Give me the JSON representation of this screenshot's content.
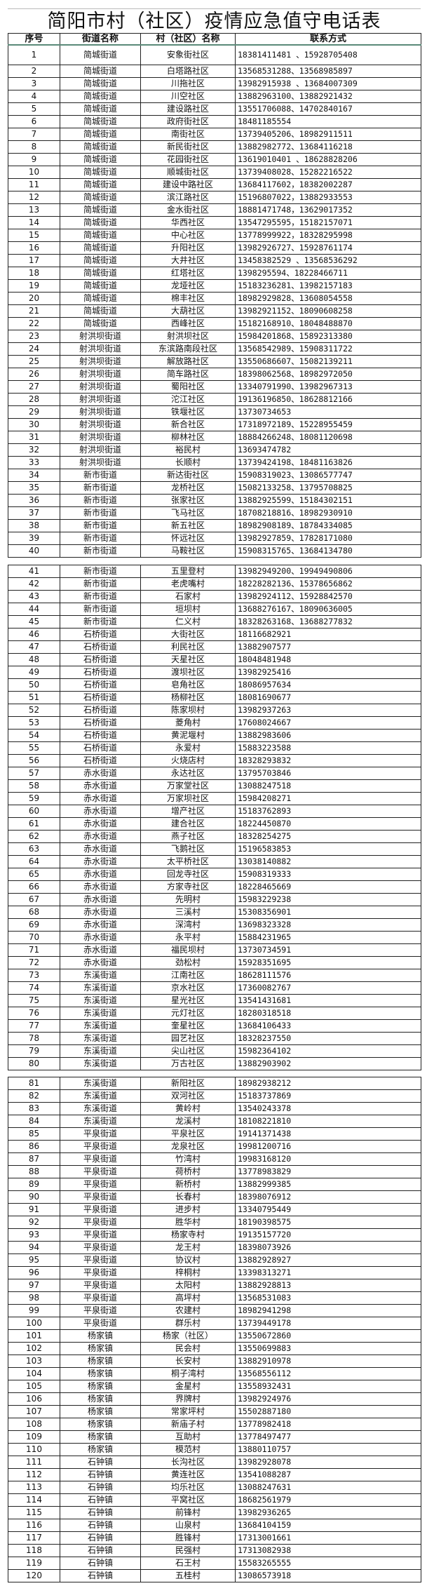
{
  "title": "简阳市村（社区）疫情应急值守电话表",
  "headers": [
    "序号",
    "街道名称",
    "村（社区）名称",
    "联系方式"
  ],
  "sections": [
    [
      [
        "1",
        "简城街道",
        "安象街社区",
        "18381411481 、15928705408"
      ],
      [
        "2",
        "简城街道",
        "白塔路社区",
        "13568531288、13568985897"
      ],
      [
        "3",
        "简城街道",
        "川拖社区",
        "13982915938 、13684007309"
      ],
      [
        "4",
        "简城街道",
        "川空社区",
        "13882963100、13882921432"
      ],
      [
        "5",
        "简城街道",
        "建设路社区",
        "13551706088、14702840167"
      ],
      [
        "6",
        "简城街道",
        "政府街社区",
        "18481185554"
      ],
      [
        "7",
        "简城街道",
        "南街社区",
        "13739405206、18982911511"
      ],
      [
        "8",
        "简城街道",
        "新民街社区",
        "13882982772、13684116218"
      ],
      [
        "9",
        "简城街道",
        "花园街社区",
        "13619010401 、18628828206"
      ],
      [
        "10",
        "简城街道",
        "顺城街社区",
        "13739408028、15282216522"
      ],
      [
        "11",
        "简城街道",
        "建设中路社区",
        "13684117602，18382002287"
      ],
      [
        "12",
        "简城街道",
        "滨江路社区",
        "15196807022，13882933553"
      ],
      [
        "13",
        "简城街道",
        "金水街社区",
        "18881471748，13629017352"
      ],
      [
        "14",
        "简城街道",
        "华西社区",
        "13547295595，15182157071"
      ],
      [
        "15",
        "简城街道",
        "中心社区",
        "13778999922，18328295998"
      ],
      [
        "16",
        "简城街道",
        "升阳社区",
        "13982926727、15928761174"
      ],
      [
        "17",
        "简城街道",
        "大井社区",
        "13458382529 、13568536292"
      ],
      [
        "18",
        "简城街道",
        "红塔社区",
        "1398295594、18228466711"
      ],
      [
        "19",
        "简城街道",
        "龙垭社区",
        "15183236281、13982157183"
      ],
      [
        "20",
        "简城街道",
        "棉丰社区",
        "18982929828、13608054558"
      ],
      [
        "21",
        "简城街道",
        "大葫社区",
        "13982921152、18090608258"
      ],
      [
        "22",
        "简城街道",
        "西峰社区",
        "15182168910、18048488870"
      ],
      [
        "23",
        "射洪坝街道",
        "射洪坝社区",
        "15984201868、15892313380"
      ],
      [
        "24",
        "射洪坝街道",
        "东滨路南段社区",
        "13568542989、15908311722"
      ],
      [
        "25",
        "射洪坝街道",
        "解放路社区",
        "13550686607、15082139211"
      ],
      [
        "26",
        "射洪坝街道",
        "简车路社区",
        "18398062568、18982972050"
      ],
      [
        "27",
        "射洪坝街道",
        "蜀阳社区",
        "13340791990、13982967313"
      ],
      [
        "28",
        "射洪坝街道",
        "沱江社区",
        "19136196850、18628812166"
      ],
      [
        "29",
        "射洪坝街道",
        "铁堰社区",
        "13730734653"
      ],
      [
        "30",
        "射洪坝街道",
        "新合社区",
        "17318972189、15228955459"
      ],
      [
        "31",
        "射洪坝街道",
        "柳林社区",
        "18884266248、18081120698"
      ],
      [
        "32",
        "射洪坝街道",
        "裕民村",
        "13693474782"
      ],
      [
        "33",
        "射洪坝街道",
        "长顺村",
        "13739424198、18481163826"
      ],
      [
        "34",
        "新市街道",
        "新达街社区",
        "15908319023、13086577747"
      ],
      [
        "35",
        "新市街道",
        "龙桥社区",
        "15082133258、13795708825"
      ],
      [
        "36",
        "新市街道",
        "张家社区",
        "13882925599、15184302151"
      ],
      [
        "37",
        "新市街道",
        "飞马社区",
        "18708218816、18982930910"
      ],
      [
        "38",
        "新市街道",
        "新五社区",
        "18982908189、18784334085"
      ],
      [
        "39",
        "新市街道",
        "怀远社区",
        "13982927859、17828171080"
      ],
      [
        "40",
        "新市街道",
        "马鞍社区",
        "15908315765、13684134780"
      ]
    ],
    [
      [
        "41",
        "新市街道",
        "五里登村",
        "13982949200、19949490806"
      ],
      [
        "42",
        "新市街道",
        "老虎嘴村",
        "18228282136、15378656862"
      ],
      [
        "43",
        "新市街道",
        "石家村",
        "13982924112、15928842570"
      ],
      [
        "44",
        "新市街道",
        "垣坝村",
        "13688276167、18090636005"
      ],
      [
        "45",
        "新市街道",
        "仁义村",
        "18328263168、13688277832"
      ],
      [
        "46",
        "石桥街道",
        "大街社区",
        "18116682921"
      ],
      [
        "47",
        "石桥街道",
        "利民社区",
        "13882907577"
      ],
      [
        "48",
        "石桥街道",
        "天星社区",
        "18048481948"
      ],
      [
        "49",
        "石桥街道",
        "渡坝社区",
        "13982925416"
      ],
      [
        "50",
        "石桥街道",
        "皂角社区",
        "18086957634"
      ],
      [
        "51",
        "石桥街道",
        "杨柳社区",
        "18081690677"
      ],
      [
        "52",
        "石桥街道",
        "陈家坝村",
        "13982937263"
      ],
      [
        "53",
        "石桥街道",
        "菱角村",
        "17608024667"
      ],
      [
        "54",
        "石桥街道",
        "黄泥堰村",
        "13882983606"
      ],
      [
        "55",
        "石桥街道",
        "永爱村",
        "15883223588"
      ],
      [
        "56",
        "石桥街道",
        "火烧店村",
        "18328293832"
      ],
      [
        "57",
        "赤水街道",
        "永达社区",
        "13795703846"
      ],
      [
        "58",
        "赤水街道",
        "万家堂社区",
        "13088247518"
      ],
      [
        "59",
        "赤水街道",
        "万家坝社区",
        "15984208271"
      ],
      [
        "60",
        "赤水街道",
        "增产社区",
        "15183762893"
      ],
      [
        "61",
        "赤水街道",
        "建合社区",
        "18224450870"
      ],
      [
        "62",
        "赤水街道",
        "燕子社区",
        "18328254275"
      ],
      [
        "63",
        "赤水街道",
        "飞鹅社区",
        "15196583853"
      ],
      [
        "64",
        "赤水街道",
        "太平桥社区",
        "13038140882"
      ],
      [
        "65",
        "赤水街道",
        "回龙寺社区",
        "15908319333"
      ],
      [
        "66",
        "赤水街道",
        "方家寺社区",
        "18228465669"
      ],
      [
        "67",
        "赤水街道",
        "先明村",
        "15983229238"
      ],
      [
        "68",
        "赤水街道",
        "三溪村",
        "15308356901"
      ],
      [
        "69",
        "赤水街道",
        "深湾村",
        "13698323328"
      ],
      [
        "70",
        "赤水街道",
        "永平村",
        "15884231965"
      ],
      [
        "71",
        "赤水街道",
        "福民坝村",
        "13730734591"
      ],
      [
        "72",
        "赤水街道",
        "劲松村",
        "15928351695"
      ],
      [
        "73",
        "东溪街道",
        "江南社区",
        "18628111576"
      ],
      [
        "74",
        "东溪街道",
        "京水社区",
        "17360082767"
      ],
      [
        "75",
        "东溪街道",
        "星光社区",
        "13541431681"
      ],
      [
        "76",
        "东溪街道",
        "元灯社区",
        "18280318518"
      ],
      [
        "77",
        "东溪街道",
        "奎星社区",
        "13684106433"
      ],
      [
        "78",
        "东溪街道",
        "园艺社区",
        "18328237550"
      ],
      [
        "79",
        "东溪街道",
        "尖山社区",
        "15982364102"
      ],
      [
        "80",
        "东溪街道",
        "万古社区",
        "13882903902"
      ]
    ],
    [
      [
        "81",
        "东溪街道",
        "新阳社区",
        "18982938212"
      ],
      [
        "82",
        "东溪街道",
        "双河社区",
        "15183737869"
      ],
      [
        "83",
        "东溪街道",
        "黄岭村",
        "13540243378"
      ],
      [
        "84",
        "东溪街道",
        "龙溪村",
        "18108221810"
      ],
      [
        "85",
        "平泉街道",
        "平泉社区",
        "19141371438"
      ],
      [
        "86",
        "平泉街道",
        "龙泉社区",
        "19981200716"
      ],
      [
        "87",
        "平泉街道",
        "竹湾村",
        "19983168120"
      ],
      [
        "88",
        "平泉街道",
        "荷桥村",
        "13778983829"
      ],
      [
        "89",
        "平泉街道",
        "新桥村",
        "13882999385"
      ],
      [
        "90",
        "平泉街道",
        "长春村",
        "18398076912"
      ],
      [
        "91",
        "平泉街道",
        "进步村",
        "13340795449"
      ],
      [
        "92",
        "平泉街道",
        "胜华村",
        "18190398575"
      ],
      [
        "93",
        "平泉街道",
        "杨家寺村",
        "19135157720"
      ],
      [
        "94",
        "平泉街道",
        "龙王村",
        "18398073926"
      ],
      [
        "95",
        "平泉街道",
        "协议村",
        "13882928927"
      ],
      [
        "96",
        "平泉街道",
        "梓桐村",
        "13398313271"
      ],
      [
        "97",
        "平泉街道",
        "太阳村",
        "13882928813"
      ],
      [
        "98",
        "平泉街道",
        "高坪村",
        "13568531083"
      ],
      [
        "99",
        "平泉街道",
        "农建村",
        "18982941298"
      ],
      [
        "100",
        "平泉街道",
        "群乐村",
        "13739449178"
      ],
      [
        "101",
        "杨家镇",
        "杨家（社区）",
        "13550672860"
      ],
      [
        "102",
        "杨家镇",
        "民会村",
        "13550699883"
      ],
      [
        "103",
        "杨家镇",
        "长安村",
        "13882910978"
      ],
      [
        "104",
        "杨家镇",
        "桐子湾村",
        "13568556112"
      ],
      [
        "105",
        "杨家镇",
        "金星村",
        "13558932431"
      ],
      [
        "106",
        "杨家镇",
        "界牌村",
        "13982924976"
      ],
      [
        "107",
        "杨家镇",
        "常家坪村",
        "15502887180"
      ],
      [
        "108",
        "杨家镇",
        "新庙子村",
        "13778982418"
      ],
      [
        "109",
        "杨家镇",
        "互助村",
        "13778497477"
      ],
      [
        "110",
        "杨家镇",
        "模范村",
        "13880110757"
      ],
      [
        "111",
        "石钟镇",
        "长沟社区",
        "13982928078"
      ],
      [
        "112",
        "石钟镇",
        "黄连社区",
        "13541088287"
      ],
      [
        "113",
        "石钟镇",
        "均乐社区",
        "13088247631"
      ],
      [
        "114",
        "石钟镇",
        "平窝社区",
        "18682561979"
      ],
      [
        "115",
        "石钟镇",
        "前锋村",
        "13982936265"
      ],
      [
        "116",
        "石钟镇",
        "山泉村",
        "13684104159"
      ],
      [
        "117",
        "石钟镇",
        "胜锋村",
        "17313001661"
      ],
      [
        "118",
        "石钟镇",
        "民强村",
        "17313082938"
      ],
      [
        "119",
        "石钟镇",
        "石王村",
        "15583265555"
      ],
      [
        "120",
        "石钟镇",
        "五桂村",
        "13086573918"
      ]
    ]
  ]
}
